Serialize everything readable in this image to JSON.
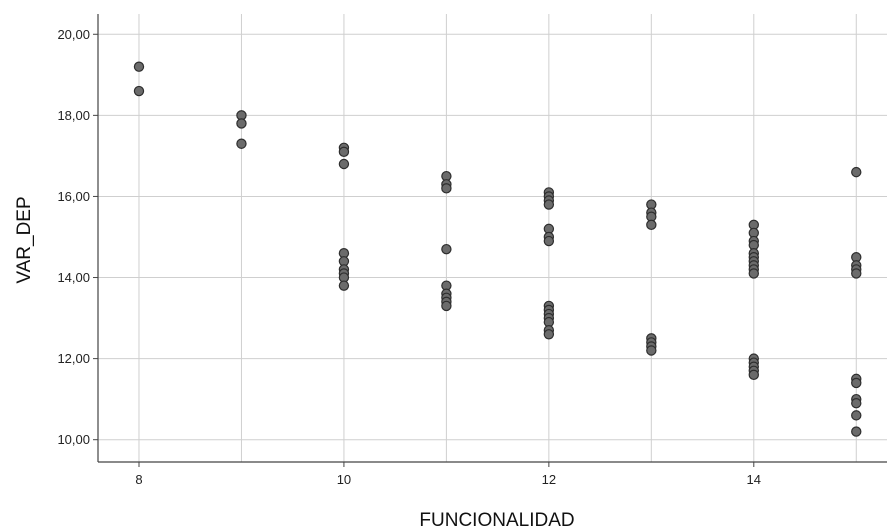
{
  "chart_data": {
    "type": "scatter",
    "xlabel": "FUNCIONALIDAD",
    "ylabel": "VAR_DEP",
    "xlim": [
      7.6,
      15.3
    ],
    "ylim": [
      9.45,
      20.5
    ],
    "xticks": [
      8,
      10,
      12,
      14
    ],
    "x_gridlines": [
      8,
      9,
      10,
      11,
      12,
      13,
      14,
      15
    ],
    "yticks": [
      10,
      12,
      14,
      16,
      18,
      20
    ],
    "ytick_labels": [
      "10,00",
      "12,00",
      "14,00",
      "16,00",
      "18,00",
      "20,00"
    ],
    "grid": true,
    "point_color": "#6b6b6b",
    "point_edge_color": "#2e2e2e",
    "points": [
      {
        "x": 8,
        "y": 19.2
      },
      {
        "x": 8,
        "y": 18.6
      },
      {
        "x": 9,
        "y": 18.0
      },
      {
        "x": 9,
        "y": 17.8
      },
      {
        "x": 9,
        "y": 17.3
      },
      {
        "x": 10,
        "y": 17.2
      },
      {
        "x": 10,
        "y": 17.1
      },
      {
        "x": 10,
        "y": 16.8
      },
      {
        "x": 10,
        "y": 14.6
      },
      {
        "x": 10,
        "y": 14.4
      },
      {
        "x": 10,
        "y": 14.2
      },
      {
        "x": 10,
        "y": 14.1
      },
      {
        "x": 10,
        "y": 14.0
      },
      {
        "x": 10,
        "y": 13.8
      },
      {
        "x": 11,
        "y": 16.5
      },
      {
        "x": 11,
        "y": 16.3
      },
      {
        "x": 11,
        "y": 16.2
      },
      {
        "x": 11,
        "y": 14.7
      },
      {
        "x": 11,
        "y": 13.8
      },
      {
        "x": 11,
        "y": 13.6
      },
      {
        "x": 11,
        "y": 13.5
      },
      {
        "x": 11,
        "y": 13.4
      },
      {
        "x": 11,
        "y": 13.3
      },
      {
        "x": 12,
        "y": 16.1
      },
      {
        "x": 12,
        "y": 16.0
      },
      {
        "x": 12,
        "y": 15.9
      },
      {
        "x": 12,
        "y": 15.8
      },
      {
        "x": 12,
        "y": 15.2
      },
      {
        "x": 12,
        "y": 15.0
      },
      {
        "x": 12,
        "y": 14.9
      },
      {
        "x": 12,
        "y": 13.3
      },
      {
        "x": 12,
        "y": 13.2
      },
      {
        "x": 12,
        "y": 13.1
      },
      {
        "x": 12,
        "y": 13.0
      },
      {
        "x": 12,
        "y": 12.9
      },
      {
        "x": 12,
        "y": 12.7
      },
      {
        "x": 12,
        "y": 12.6
      },
      {
        "x": 13,
        "y": 15.8
      },
      {
        "x": 13,
        "y": 15.6
      },
      {
        "x": 13,
        "y": 15.5
      },
      {
        "x": 13,
        "y": 15.3
      },
      {
        "x": 13,
        "y": 12.5
      },
      {
        "x": 13,
        "y": 12.4
      },
      {
        "x": 13,
        "y": 12.3
      },
      {
        "x": 13,
        "y": 12.2
      },
      {
        "x": 14,
        "y": 15.3
      },
      {
        "x": 14,
        "y": 15.1
      },
      {
        "x": 14,
        "y": 14.9
      },
      {
        "x": 14,
        "y": 14.8
      },
      {
        "x": 14,
        "y": 14.6
      },
      {
        "x": 14,
        "y": 14.5
      },
      {
        "x": 14,
        "y": 14.4
      },
      {
        "x": 14,
        "y": 14.3
      },
      {
        "x": 14,
        "y": 14.2
      },
      {
        "x": 14,
        "y": 14.1
      },
      {
        "x": 14,
        "y": 12.0
      },
      {
        "x": 14,
        "y": 11.9
      },
      {
        "x": 14,
        "y": 11.8
      },
      {
        "x": 14,
        "y": 11.7
      },
      {
        "x": 14,
        "y": 11.6
      },
      {
        "x": 15,
        "y": 16.6
      },
      {
        "x": 15,
        "y": 14.5
      },
      {
        "x": 15,
        "y": 14.3
      },
      {
        "x": 15,
        "y": 14.2
      },
      {
        "x": 15,
        "y": 14.1
      },
      {
        "x": 15,
        "y": 11.5
      },
      {
        "x": 15,
        "y": 11.4
      },
      {
        "x": 15,
        "y": 11.0
      },
      {
        "x": 15,
        "y": 10.9
      },
      {
        "x": 15,
        "y": 10.6
      },
      {
        "x": 15,
        "y": 10.2
      }
    ]
  }
}
